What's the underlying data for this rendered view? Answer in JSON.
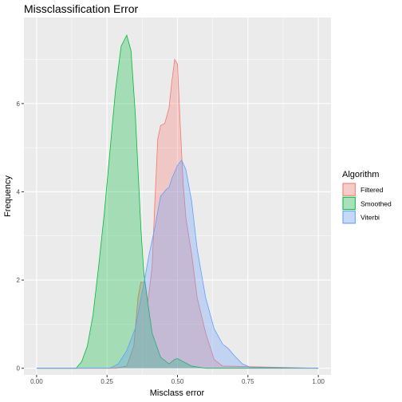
{
  "chart_data": {
    "type": "area",
    "title": "Missclassification Error",
    "xlabel": "Misclass error",
    "ylabel": "Frequency",
    "xlim": [
      -0.045,
      1.045
    ],
    "ylim": [
      -0.15,
      7.95
    ],
    "x_ticks": [
      0.0,
      0.25,
      0.5,
      0.75,
      1.0
    ],
    "x_tick_labels": [
      "0.00",
      "0.25",
      "0.50",
      "0.75",
      "1.00"
    ],
    "y_ticks": [
      0,
      2,
      4,
      6
    ],
    "y_tick_labels": [
      "0",
      "2",
      "4",
      "6"
    ],
    "grid": true,
    "legend": {
      "title": "Algorithm",
      "position": "right",
      "entries": [
        "Filtered",
        "Smoothed",
        "Viterbi"
      ]
    },
    "series": [
      {
        "name": "Filtered",
        "color": "#f8766d",
        "fill": "#f8766d",
        "points": [
          [
            0,
            0
          ],
          [
            0.28,
            0
          ],
          [
            0.32,
            0.05
          ],
          [
            0.345,
            0.5
          ],
          [
            0.36,
            1.6
          ],
          [
            0.37,
            1.95
          ],
          [
            0.385,
            1.95
          ],
          [
            0.395,
            1.5
          ],
          [
            0.41,
            2.3
          ],
          [
            0.42,
            3.8
          ],
          [
            0.43,
            5.2
          ],
          [
            0.44,
            5.5
          ],
          [
            0.455,
            5.55
          ],
          [
            0.47,
            5.9
          ],
          [
            0.48,
            6.5
          ],
          [
            0.49,
            7.0
          ],
          [
            0.5,
            6.9
          ],
          [
            0.51,
            5.5
          ],
          [
            0.52,
            4.2
          ],
          [
            0.53,
            3.4
          ],
          [
            0.55,
            2.6
          ],
          [
            0.57,
            1.6
          ],
          [
            0.6,
            0.8
          ],
          [
            0.63,
            0.2
          ],
          [
            0.66,
            0.05
          ],
          [
            1.0,
            0
          ]
        ]
      },
      {
        "name": "Smoothed",
        "color": "#00ba38",
        "fill": "#00ba38",
        "points": [
          [
            0,
            0
          ],
          [
            0.14,
            0
          ],
          [
            0.16,
            0.15
          ],
          [
            0.18,
            0.5
          ],
          [
            0.2,
            1.2
          ],
          [
            0.22,
            2.3
          ],
          [
            0.24,
            3.5
          ],
          [
            0.26,
            4.9
          ],
          [
            0.28,
            6.3
          ],
          [
            0.3,
            7.3
          ],
          [
            0.32,
            7.55
          ],
          [
            0.335,
            7.2
          ],
          [
            0.35,
            5.8
          ],
          [
            0.37,
            3.2
          ],
          [
            0.38,
            2.2
          ],
          [
            0.39,
            1.7
          ],
          [
            0.41,
            0.8
          ],
          [
            0.44,
            0.25
          ],
          [
            0.47,
            0.1
          ],
          [
            0.49,
            0.2
          ],
          [
            0.5,
            0.22
          ],
          [
            0.52,
            0.15
          ],
          [
            0.55,
            0.05
          ],
          [
            0.6,
            0
          ],
          [
            1.0,
            0
          ]
        ]
      },
      {
        "name": "Viterbi",
        "color": "#619cff",
        "fill": "#619cff",
        "points": [
          [
            0,
            0
          ],
          [
            0.26,
            0
          ],
          [
            0.29,
            0.1
          ],
          [
            0.32,
            0.4
          ],
          [
            0.35,
            0.9
          ],
          [
            0.38,
            1.9
          ],
          [
            0.4,
            2.6
          ],
          [
            0.42,
            3.2
          ],
          [
            0.44,
            3.9
          ],
          [
            0.46,
            4.05
          ],
          [
            0.47,
            4.1
          ],
          [
            0.48,
            4.3
          ],
          [
            0.5,
            4.6
          ],
          [
            0.515,
            4.72
          ],
          [
            0.53,
            4.5
          ],
          [
            0.55,
            3.8
          ],
          [
            0.57,
            2.7
          ],
          [
            0.6,
            1.6
          ],
          [
            0.63,
            0.9
          ],
          [
            0.66,
            0.55
          ],
          [
            0.68,
            0.45
          ],
          [
            0.7,
            0.3
          ],
          [
            0.73,
            0.1
          ],
          [
            0.76,
            0.02
          ],
          [
            1.0,
            0
          ]
        ]
      }
    ]
  }
}
